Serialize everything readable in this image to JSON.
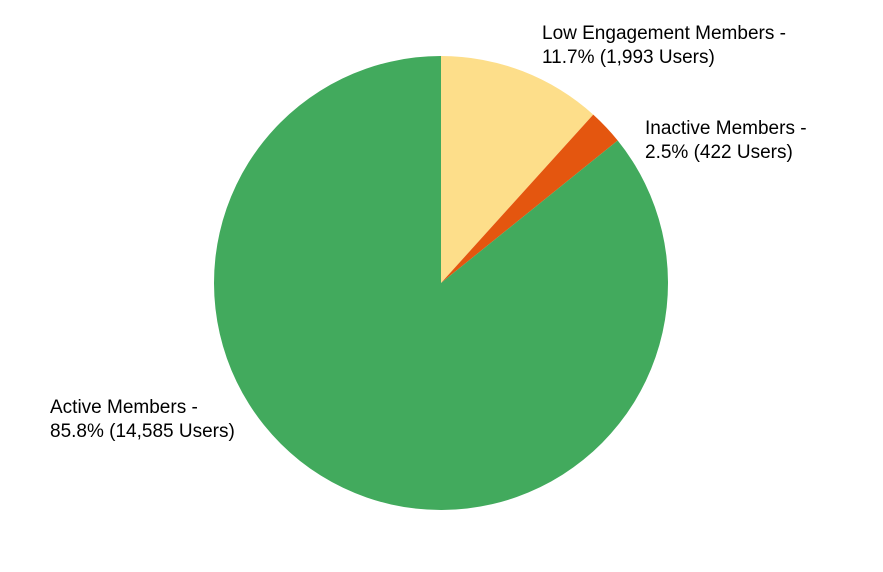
{
  "chart_data": {
    "type": "pie",
    "start_angle_deg": 0,
    "direction": "clockwise",
    "slices": [
      {
        "label": "Low Engagement Members",
        "percent": 11.7,
        "users": 1993,
        "color": "#FDDE8A",
        "label_line1": "Low Engagement Members -",
        "label_line2": "11.7% (1,993 Users)"
      },
      {
        "label": "Inactive Members",
        "percent": 2.5,
        "users": 422,
        "color": "#E4560F",
        "label_line1": "Inactive Members -",
        "label_line2": "2.5% (422 Users)"
      },
      {
        "label": "Active Members",
        "percent": 85.8,
        "users": 14585,
        "color": "#42AA5D",
        "label_line1": "Active Members -",
        "label_line2": "85.8% (14,585 Users)"
      }
    ]
  }
}
